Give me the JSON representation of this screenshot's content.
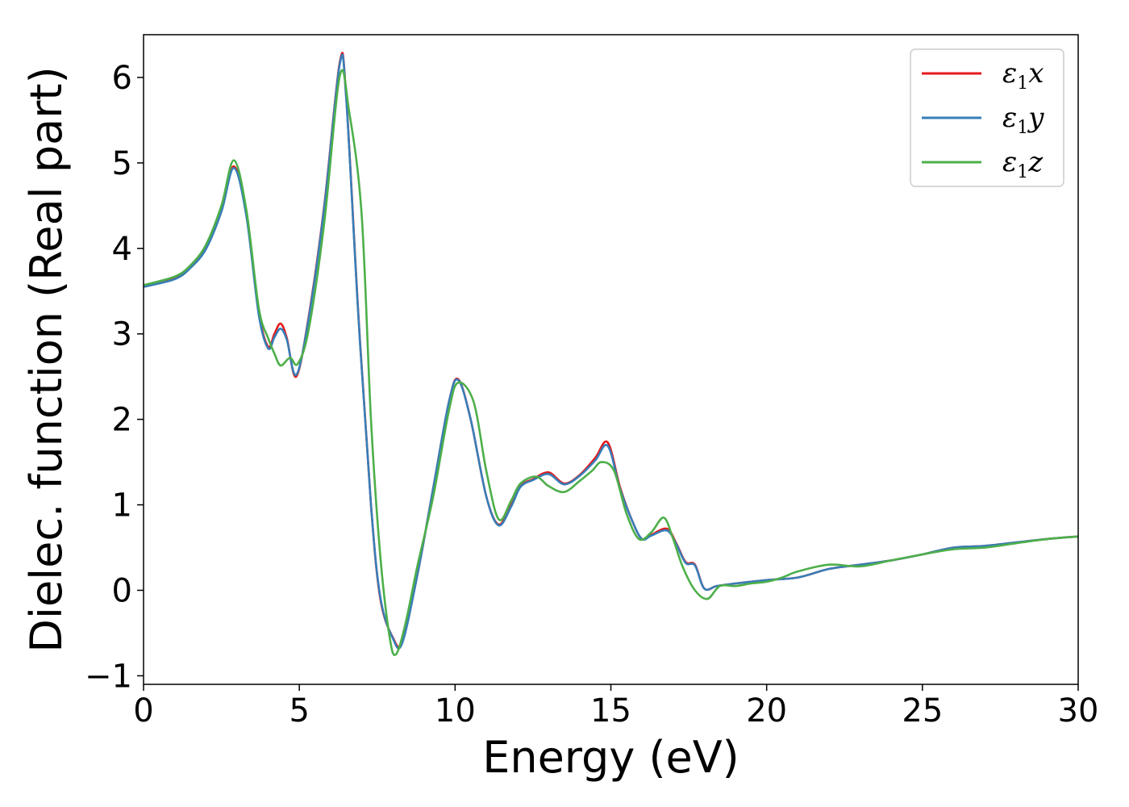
{
  "chart_data": {
    "type": "line",
    "title": "",
    "xlabel": "Energy (eV)",
    "ylabel": "Dielec. function (Real part)",
    "xlim": [
      0,
      30
    ],
    "ylim": [
      -1.1,
      6.5
    ],
    "xticks": [
      0,
      5,
      10,
      15,
      20,
      25,
      30
    ],
    "yticks": [
      -1,
      0,
      1,
      2,
      3,
      4,
      5,
      6
    ],
    "xtick_labels": [
      "0",
      "5",
      "10",
      "15",
      "20",
      "25",
      "30"
    ],
    "ytick_labels": [
      "−1",
      "0",
      "1",
      "2",
      "3",
      "4",
      "5",
      "6"
    ],
    "grid": false,
    "legend_position": "top-right",
    "series": [
      {
        "name": "ε1x",
        "legend_base": "ε",
        "legend_sub": "1",
        "legend_var": "x",
        "color": "#e41a1c",
        "x": [
          0,
          1,
          1.5,
          2,
          2.5,
          2.9,
          3.3,
          3.7,
          4.0,
          4.2,
          4.4,
          4.6,
          4.9,
          5.3,
          5.8,
          6.3,
          6.5,
          6.9,
          7.3,
          7.6,
          8.0,
          8.3,
          8.8,
          9.3,
          9.8,
          10.1,
          10.5,
          11.0,
          11.4,
          11.8,
          12.1,
          12.5,
          13.0,
          13.5,
          14.0,
          14.5,
          14.9,
          15.3,
          15.7,
          16.0,
          16.3,
          16.8,
          17.1,
          17.4,
          17.7,
          18.0,
          18.4,
          19.0,
          20.0,
          21.0,
          22.0,
          23.0,
          24.0,
          25.0,
          26.0,
          27.0,
          28.0,
          29.0,
          30.0
        ],
        "y": [
          3.55,
          3.65,
          3.78,
          4.0,
          4.45,
          4.96,
          4.4,
          3.25,
          2.85,
          3.0,
          3.12,
          2.95,
          2.5,
          3.2,
          4.5,
          6.18,
          5.8,
          3.2,
          1.0,
          -0.1,
          -0.55,
          -0.6,
          0.2,
          1.2,
          2.2,
          2.47,
          2.0,
          1.1,
          0.77,
          1.0,
          1.22,
          1.3,
          1.38,
          1.25,
          1.35,
          1.55,
          1.73,
          1.2,
          0.8,
          0.6,
          0.65,
          0.72,
          0.55,
          0.33,
          0.3,
          0.02,
          0.05,
          0.08,
          0.12,
          0.15,
          0.25,
          0.3,
          0.35,
          0.42,
          0.5,
          0.52,
          0.56,
          0.6,
          0.63
        ]
      },
      {
        "name": "ε1y",
        "legend_base": "ε",
        "legend_sub": "1",
        "legend_var": "y",
        "color": "#377eb8",
        "x": [
          0,
          1,
          1.5,
          2,
          2.5,
          2.9,
          3.3,
          3.7,
          4.0,
          4.2,
          4.4,
          4.6,
          4.9,
          5.3,
          5.8,
          6.3,
          6.5,
          6.9,
          7.3,
          7.6,
          8.0,
          8.3,
          8.8,
          9.3,
          9.8,
          10.1,
          10.5,
          11.0,
          11.4,
          11.8,
          12.1,
          12.5,
          13.0,
          13.5,
          14.0,
          14.5,
          14.9,
          15.3,
          15.7,
          16.0,
          16.3,
          16.8,
          17.1,
          17.4,
          17.7,
          18.0,
          18.4,
          19.0,
          20.0,
          21.0,
          22.0,
          23.0,
          24.0,
          25.0,
          26.0,
          27.0,
          28.0,
          29.0,
          30.0
        ],
        "y": [
          3.55,
          3.64,
          3.77,
          3.99,
          4.43,
          4.94,
          4.38,
          3.22,
          2.83,
          2.96,
          3.06,
          2.93,
          2.52,
          3.18,
          4.48,
          6.16,
          5.78,
          3.18,
          1.0,
          -0.08,
          -0.56,
          -0.62,
          0.2,
          1.2,
          2.2,
          2.46,
          2.0,
          1.1,
          0.76,
          0.98,
          1.21,
          1.29,
          1.36,
          1.24,
          1.34,
          1.52,
          1.69,
          1.18,
          0.8,
          0.6,
          0.64,
          0.7,
          0.54,
          0.32,
          0.29,
          0.02,
          0.05,
          0.08,
          0.12,
          0.15,
          0.25,
          0.3,
          0.35,
          0.42,
          0.5,
          0.52,
          0.56,
          0.6,
          0.63
        ]
      },
      {
        "name": "ε1z",
        "legend_base": "ε",
        "legend_sub": "1",
        "legend_var": "z",
        "color": "#4daf4a",
        "x": [
          0,
          1,
          1.5,
          2,
          2.5,
          2.9,
          3.3,
          3.7,
          4.0,
          4.2,
          4.4,
          4.7,
          4.95,
          5.3,
          5.8,
          6.3,
          6.6,
          7.0,
          7.3,
          7.6,
          7.9,
          8.1,
          8.4,
          8.8,
          9.3,
          9.8,
          10.1,
          10.6,
          11.0,
          11.4,
          11.8,
          12.1,
          12.6,
          13.0,
          13.5,
          14.0,
          14.4,
          14.7,
          15.1,
          15.5,
          15.9,
          16.3,
          16.7,
          17.0,
          17.3,
          17.7,
          18.1,
          18.5,
          19.0,
          19.5,
          20.0,
          20.5,
          21.0,
          22.0,
          23.0,
          24.0,
          25.0,
          26.0,
          27.0,
          28.0,
          29.0,
          30.0
        ],
        "y": [
          3.57,
          3.67,
          3.8,
          4.04,
          4.5,
          5.03,
          4.45,
          3.3,
          2.95,
          2.77,
          2.63,
          2.72,
          2.65,
          3.05,
          4.3,
          6.02,
          5.6,
          4.4,
          2.0,
          0.4,
          -0.55,
          -0.75,
          -0.4,
          0.3,
          1.1,
          2.1,
          2.43,
          2.2,
          1.4,
          0.83,
          1.05,
          1.25,
          1.33,
          1.22,
          1.15,
          1.28,
          1.4,
          1.5,
          1.4,
          0.9,
          0.6,
          0.68,
          0.85,
          0.6,
          0.28,
          0.0,
          -0.1,
          0.05,
          0.05,
          0.08,
          0.1,
          0.15,
          0.22,
          0.3,
          0.28,
          0.35,
          0.42,
          0.48,
          0.5,
          0.55,
          0.6,
          0.63
        ]
      }
    ]
  }
}
